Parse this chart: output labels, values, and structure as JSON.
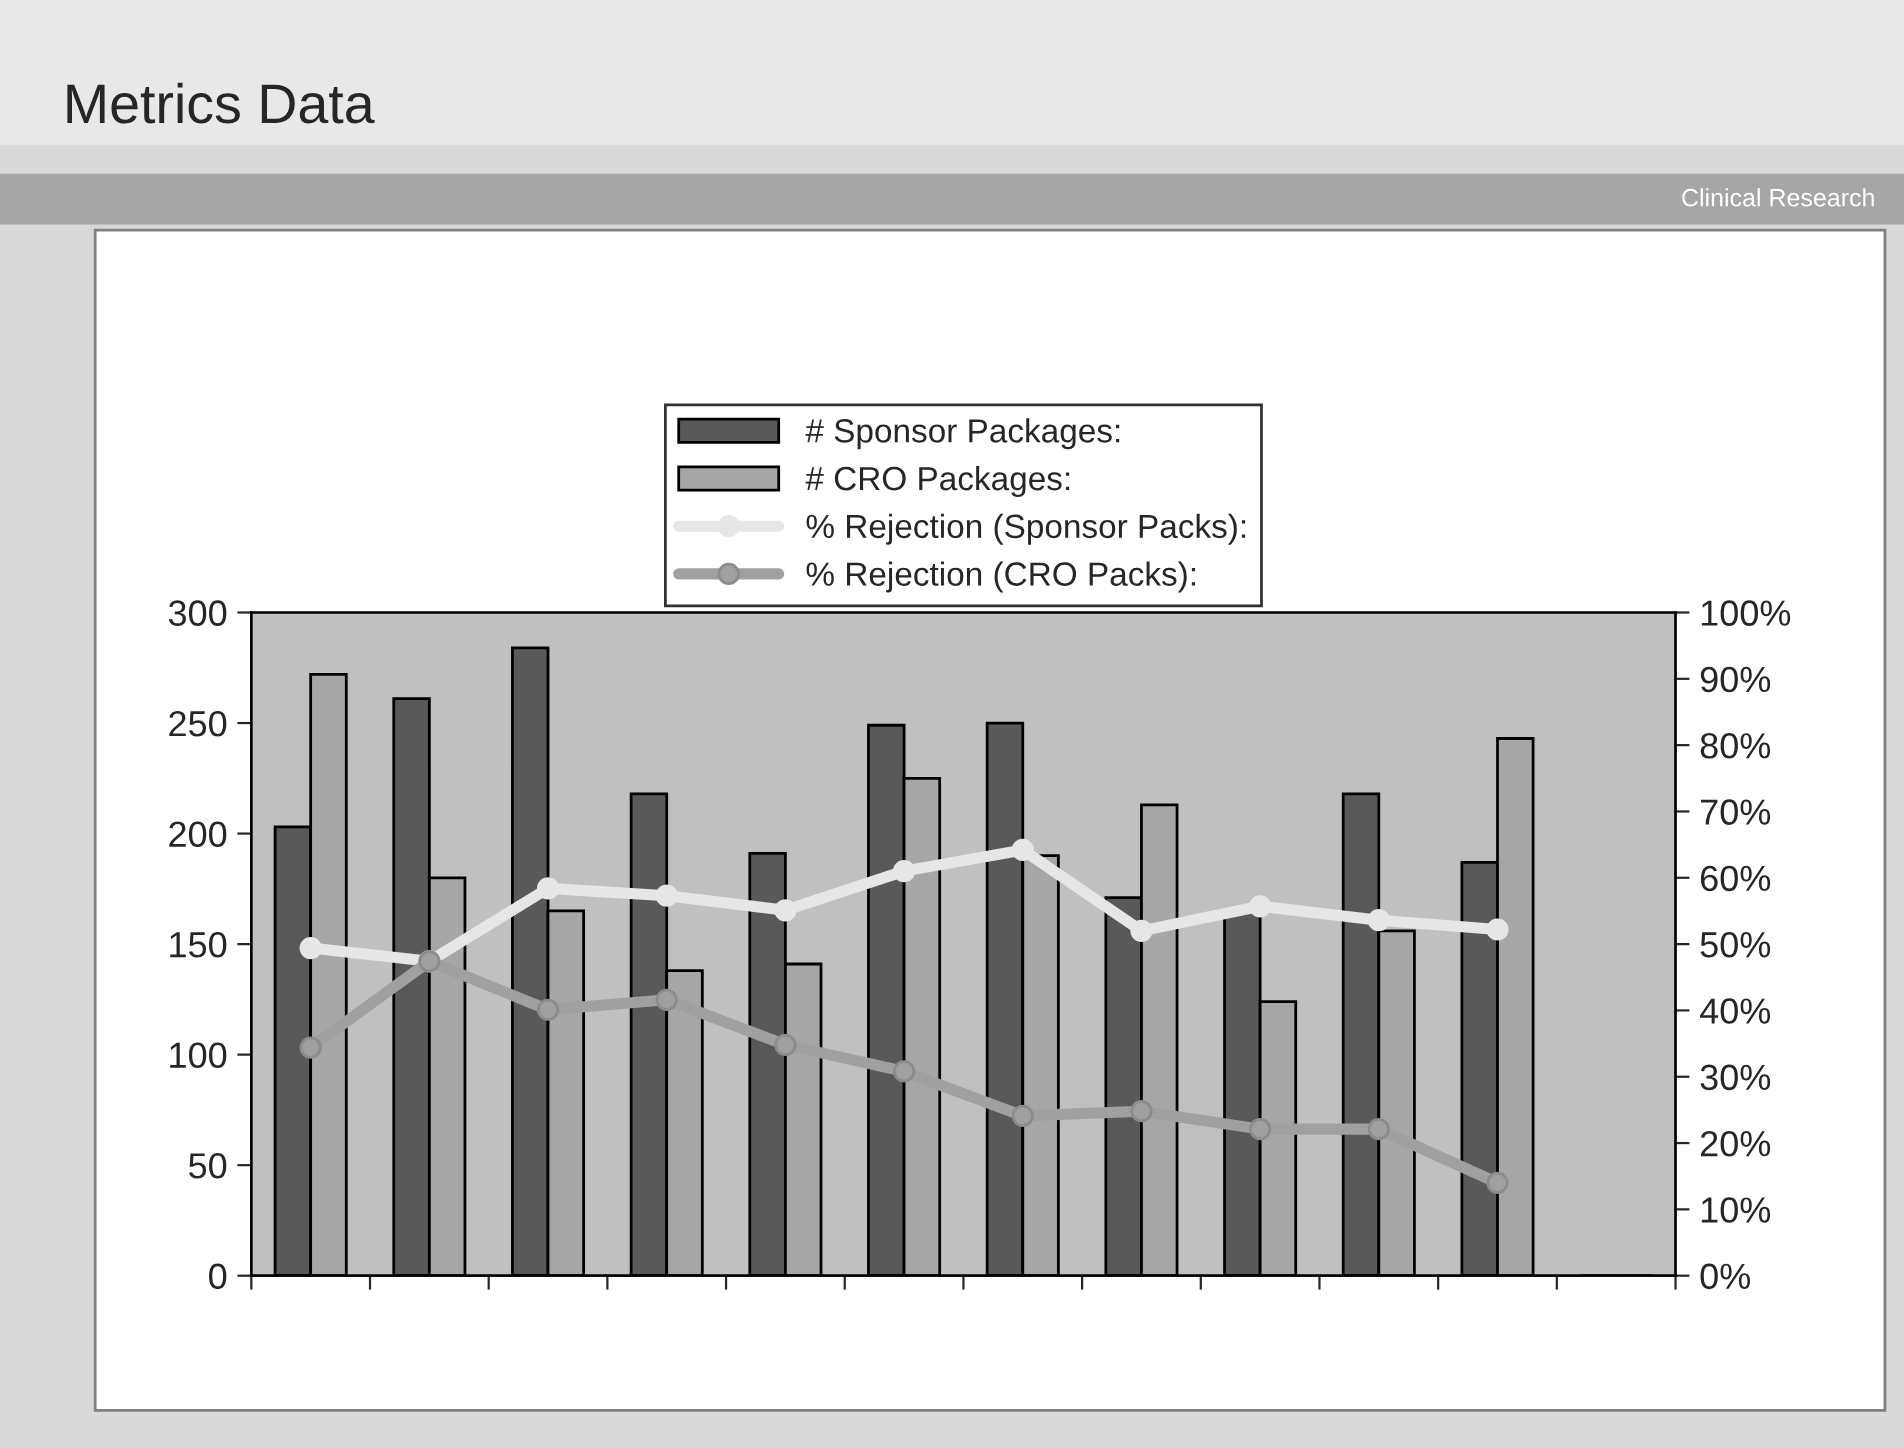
{
  "chart_data": {
    "type": "bar",
    "title": "Metrics Data",
    "annotations": [
      "Clinical Research"
    ],
    "categories": [
      null,
      null,
      null,
      null,
      null,
      null,
      null,
      null,
      null,
      null,
      null,
      null
    ],
    "series": [
      {
        "name": "# Sponsor Packages:",
        "color": "#595959",
        "values": [
          203,
          261,
          284,
          218,
          191,
          249,
          250,
          171,
          165,
          218,
          187,
          null
        ]
      },
      {
        "name": "# CRO Packages:",
        "color": "#a6a6a6",
        "values": [
          272,
          180,
          165,
          138,
          141,
          225,
          190,
          213,
          124,
          156,
          243,
          null
        ]
      },
      {
        "name": "% Rejection (Sponsor Packs):",
        "type": "line",
        "axis": "y2",
        "color": "#e6e6e6",
        "marker": "circle",
        "values": [
          49.4,
          47.4,
          58.4,
          57.3,
          55.1,
          61.0,
          64.2,
          52.0,
          55.7,
          53.6,
          52.2,
          null
        ]
      },
      {
        "name": "% Rejection (CRO Packs):",
        "type": "line",
        "axis": "y2",
        "color": "#a0a0a0",
        "marker": "circle",
        "values": [
          34.4,
          47.4,
          40.1,
          41.6,
          34.8,
          30.8,
          24.1,
          24.8,
          22.1,
          22.1,
          14.0,
          null
        ]
      }
    ],
    "ylim": [
      0,
      300
    ],
    "yticks": [
      0,
      50,
      100,
      150,
      200,
      250,
      300
    ],
    "y2lim": [
      0,
      100
    ],
    "y2ticks": [
      {
        "value": 0,
        "label": "0%"
      },
      {
        "value": 10,
        "label": "10%"
      },
      {
        "value": 20,
        "label": "20%"
      },
      {
        "value": 30,
        "label": "30%"
      },
      {
        "value": 40,
        "label": "40%"
      },
      {
        "value": 50,
        "label": "50%"
      },
      {
        "value": 60,
        "label": "60%"
      },
      {
        "value": 70,
        "label": "70%"
      },
      {
        "value": 80,
        "label": "80%"
      },
      {
        "value": 90,
        "label": "90%"
      },
      {
        "value": 100,
        "label": "100%"
      }
    ],
    "legend": "top",
    "grid": false
  }
}
